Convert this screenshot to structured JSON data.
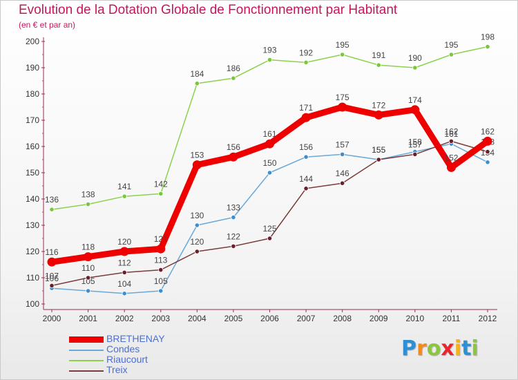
{
  "chart_data": {
    "type": "line",
    "title": "Evolution de la Dotation Globale de Fonctionnement par Habitant",
    "subtitle": "(en € et par an)",
    "xlabel": "",
    "ylabel": "",
    "ylim": [
      100,
      200
    ],
    "yticks": [
      100,
      110,
      120,
      130,
      140,
      150,
      160,
      170,
      180,
      190,
      200
    ],
    "categories": [
      "2000",
      "2001",
      "2002",
      "2003",
      "2004",
      "2005",
      "2006",
      "2007",
      "2008",
      "2009",
      "2010",
      "2011",
      "2012"
    ],
    "grid": false,
    "legend_position": "bottom-left",
    "series": [
      {
        "name": "Riaucourt",
        "color": "#8bd24a",
        "dot_color": "#7ac63c",
        "values": [
          136,
          138,
          141,
          142,
          184,
          186,
          193,
          192,
          195,
          191,
          190,
          195,
          198
        ],
        "labels": [
          "136",
          "138",
          "141",
          "142",
          "184",
          "186",
          "193",
          "192",
          "195",
          "191",
          "190",
          "195",
          "198"
        ]
      },
      {
        "name": "Condes",
        "color": "#6aa8d8",
        "dot_color": "#3b8fd0",
        "values": [
          106,
          105,
          104,
          105,
          130,
          133,
          150,
          156,
          157,
          155,
          158,
          161,
          154
        ],
        "labels": [
          "106",
          "105",
          "104",
          "105",
          "130",
          "133",
          "150",
          "156",
          "157",
          "155",
          "158",
          "161",
          "154"
        ]
      },
      {
        "name": "Treix",
        "color": "#7a3b3b",
        "dot_color": "#6b1f2b",
        "values": [
          107,
          110,
          112,
          113,
          120,
          122,
          125,
          144,
          146,
          155,
          157,
          162,
          158
        ],
        "labels": [
          "107",
          "110",
          "112",
          "113",
          "120",
          "122",
          "125",
          "144",
          "146",
          "155",
          "157",
          "162",
          "158"
        ]
      },
      {
        "name": "BRETHENAY",
        "color": "#ee0000",
        "dot_color": "#ee0000",
        "values": [
          116,
          118,
          120,
          121,
          153,
          156,
          161,
          171,
          175,
          172,
          174,
          152,
          162
        ],
        "labels": [
          "116",
          "118",
          "120",
          "121",
          "153",
          "156",
          "161",
          "171",
          "175",
          "172",
          "174",
          "152",
          "162"
        ]
      }
    ]
  },
  "legend": {
    "items": [
      {
        "label": "BRETHENAY",
        "color": "#ee0000"
      },
      {
        "label": "Condes",
        "color": "#6aa8d8"
      },
      {
        "label": "Riaucourt",
        "color": "#8bd24a"
      },
      {
        "label": "Treix",
        "color": "#7a3b3b"
      }
    ]
  },
  "logo": {
    "letters": [
      {
        "char": "P",
        "color": "#2f8fd6"
      },
      {
        "char": "r",
        "color": "#f28a1c"
      },
      {
        "char": "o",
        "color": "#8cc63f"
      },
      {
        "char": "x",
        "color": "#e8262b"
      },
      {
        "char": "i",
        "color": "#f6b21a"
      },
      {
        "char": "t",
        "color": "#2f8fd6"
      },
      {
        "char": "i",
        "color": "#8cc63f"
      }
    ]
  }
}
